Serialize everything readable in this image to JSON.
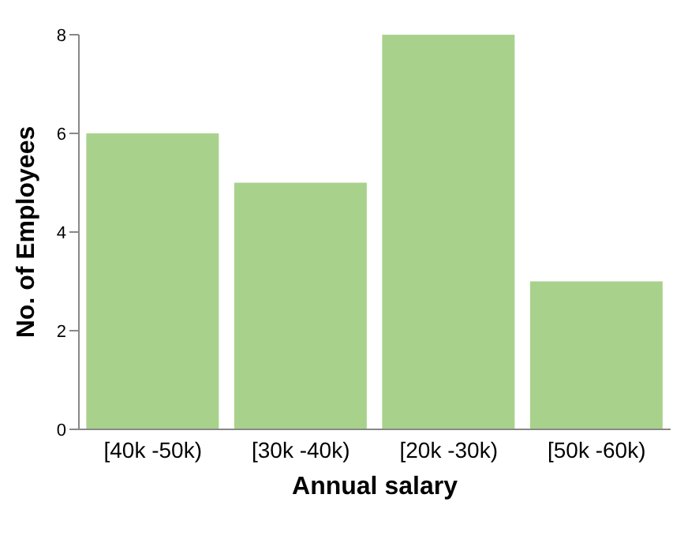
{
  "chart_data": {
    "type": "bar",
    "xlabel": "Annual salary",
    "ylabel": "No. of Employees",
    "categories": [
      "[40k -50k)",
      "[30k -40k)",
      "[20k -30k)",
      "[50k -60k)"
    ],
    "values": [
      6,
      5,
      8,
      3
    ],
    "color": "#a8d28c",
    "ylim": [
      0,
      8
    ],
    "yticks": [
      0,
      2,
      4,
      6,
      8
    ],
    "grid": false
  }
}
